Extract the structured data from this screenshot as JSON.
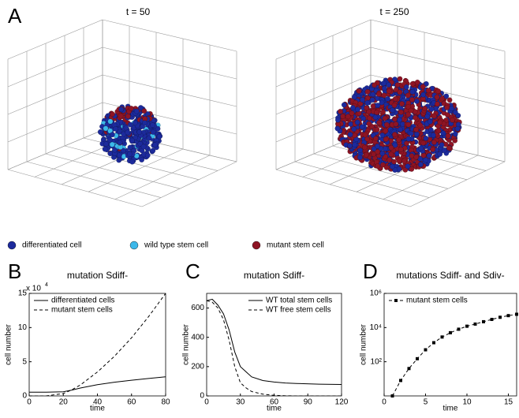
{
  "panel_a": {
    "label": "A",
    "plots": [
      {
        "title": "t = 50"
      },
      {
        "title": "t = 250"
      }
    ],
    "legend": [
      {
        "name": "differentiated cell",
        "color": "#1c2a9c"
      },
      {
        "name": "wild type stem cell",
        "color": "#3cb8ea"
      },
      {
        "name": "mutant stem cell",
        "color": "#8e1424"
      }
    ]
  },
  "chart_data": [
    {
      "type": "line",
      "panel_label": "B",
      "title": "mutation Sdiff-",
      "xlabel": "time",
      "ylabel": "cell number",
      "y_multiplier": {
        "text": "x 10",
        "exponent": "4"
      },
      "x": [
        0,
        10,
        20,
        25,
        30,
        40,
        50,
        60,
        70,
        80
      ],
      "series": [
        {
          "name": "differentiated cells",
          "color": "#000000",
          "line_style": "solid",
          "values": [
            0.55,
            0.55,
            0.6,
            0.85,
            1.15,
            1.65,
            2.0,
            2.3,
            2.55,
            2.8
          ]
        },
        {
          "name": "mutant stem cells",
          "color": "#000000",
          "line_style": "dashed",
          "values": [
            0,
            0,
            0.35,
            0.9,
            1.6,
            3.5,
            5.8,
            8.5,
            11.6,
            15
          ]
        }
      ],
      "xlim": [
        0,
        80
      ],
      "xticks": [
        0,
        20,
        40,
        60,
        80
      ],
      "ylim": [
        0,
        15
      ],
      "yticks": [
        0,
        5,
        10,
        15
      ],
      "legend": "upper left"
    },
    {
      "type": "line",
      "panel_label": "C",
      "title": "mutation Sdiff-",
      "xlabel": "time",
      "ylabel": "cell number",
      "x": [
        0,
        5,
        10,
        15,
        20,
        25,
        30,
        35,
        40,
        50,
        60,
        70,
        80,
        100,
        120
      ],
      "series": [
        {
          "name": "WT total stem cells",
          "color": "#000000",
          "line_style": "solid",
          "values": [
            650,
            660,
            620,
            560,
            450,
            300,
            200,
            165,
            130,
            105,
            95,
            88,
            85,
            80,
            78
          ]
        },
        {
          "name": "WT free stem cells",
          "color": "#000000",
          "line_style": "dashed",
          "values": [
            650,
            640,
            600,
            520,
            380,
            200,
            90,
            55,
            30,
            12,
            4,
            1,
            0,
            0,
            0
          ]
        }
      ],
      "xlim": [
        0,
        120
      ],
      "xticks": [
        0,
        30,
        60,
        90,
        120
      ],
      "ylim": [
        0,
        700
      ],
      "yticks": [
        0,
        200,
        400,
        600
      ],
      "legend": "upper right"
    },
    {
      "type": "line",
      "panel_label": "D",
      "title": "mutations Sdiff- and Sdiv-",
      "xlabel": "time",
      "ylabel": "cell number",
      "x": [
        1,
        2,
        3,
        4,
        5,
        6,
        7,
        8,
        9,
        10,
        11,
        12,
        13,
        14,
        15,
        16
      ],
      "series": [
        {
          "name": "mutant stem cells",
          "color": "#000000",
          "line_style": "dashed",
          "marker": "square",
          "values": [
            1,
            8,
            40,
            150,
            500,
            1300,
            2800,
            5000,
            8000,
            12000,
            16000,
            22000,
            30000,
            40000,
            50000,
            60000
          ]
        }
      ],
      "xlim": [
        0,
        16
      ],
      "xticks": [
        0,
        5,
        10,
        15
      ],
      "ylim": [
        1,
        1000000
      ],
      "yscale": "log",
      "yticks": [
        {
          "value": 100,
          "label": "10²"
        },
        {
          "value": 10000,
          "label": "10⁴"
        },
        {
          "value": 1000000,
          "label": "10⁶"
        }
      ],
      "legend": "upper left"
    }
  ]
}
